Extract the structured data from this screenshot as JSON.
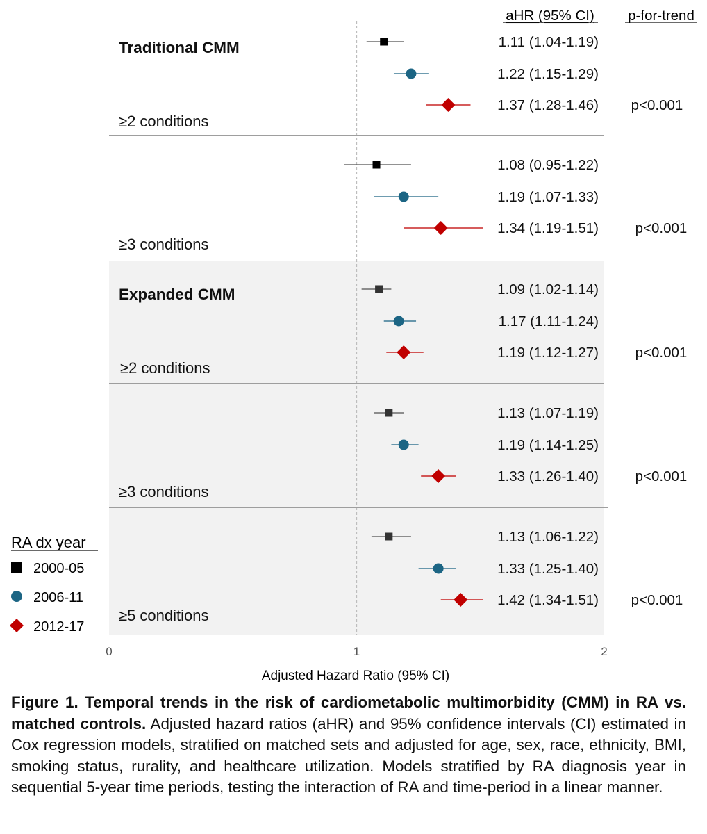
{
  "column_headers": {
    "estimate": "aHR (95% CI)",
    "trend": "p-for-trend"
  },
  "chart_data": {
    "type": "forest",
    "xlabel": "Adjusted Hazard Ratio (95% CI)",
    "xlim": [
      0,
      2
    ],
    "xticks": [
      0,
      1,
      2
    ],
    "reference_line": 1,
    "grid": false,
    "legend_title": "RA dx year",
    "legend_position": "bottom-left",
    "series": [
      {
        "name": "2000-05",
        "marker": "square",
        "color": "#000000"
      },
      {
        "name": "2006-11",
        "marker": "circle",
        "color": "#1c6584"
      },
      {
        "name": "2012-17",
        "marker": "diamond",
        "color": "#c00000"
      }
    ],
    "panels": [
      {
        "section": "Traditional CMM",
        "label": "≥2 conditions",
        "p_trend": "p<0.001",
        "shaded": false,
        "rows": [
          {
            "series": "2000-05",
            "hr": 1.11,
            "lo": 1.04,
            "hi": 1.19,
            "text": "1.11 (1.04-1.19)"
          },
          {
            "series": "2006-11",
            "hr": 1.22,
            "lo": 1.15,
            "hi": 1.29,
            "text": "1.22 (1.15-1.29)"
          },
          {
            "series": "2012-17",
            "hr": 1.37,
            "lo": 1.28,
            "hi": 1.46,
            "text": "1.37 (1.28-1.46)"
          }
        ]
      },
      {
        "section": "",
        "label": "≥3 conditions",
        "p_trend": "p<0.001",
        "shaded": false,
        "rows": [
          {
            "series": "2000-05",
            "hr": 1.08,
            "lo": 0.95,
            "hi": 1.22,
            "text": "1.08 (0.95-1.22)"
          },
          {
            "series": "2006-11",
            "hr": 1.19,
            "lo": 1.07,
            "hi": 1.33,
            "text": "1.19 (1.07-1.33)"
          },
          {
            "series": "2012-17",
            "hr": 1.34,
            "lo": 1.19,
            "hi": 1.51,
            "text": "1.34 (1.19-1.51)"
          }
        ]
      },
      {
        "section": "Expanded CMM",
        "label": "≥2 conditions",
        "p_trend": "p<0.001",
        "shaded": true,
        "rows": [
          {
            "series": "2000-05",
            "hr": 1.09,
            "lo": 1.02,
            "hi": 1.14,
            "text": "1.09 (1.02-1.14)"
          },
          {
            "series": "2006-11",
            "hr": 1.17,
            "lo": 1.11,
            "hi": 1.24,
            "text": "1.17 (1.11-1.24)"
          },
          {
            "series": "2012-17",
            "hr": 1.19,
            "lo": 1.12,
            "hi": 1.27,
            "text": "1.19 (1.12-1.27)"
          }
        ]
      },
      {
        "section": "",
        "label": "≥3 conditions",
        "p_trend": "p<0.001",
        "shaded": true,
        "rows": [
          {
            "series": "2000-05",
            "hr": 1.13,
            "lo": 1.07,
            "hi": 1.19,
            "text": "1.13 (1.07-1.19)"
          },
          {
            "series": "2006-11",
            "hr": 1.19,
            "lo": 1.14,
            "hi": 1.25,
            "text": "1.19 (1.14-1.25)"
          },
          {
            "series": "2012-17",
            "hr": 1.33,
            "lo": 1.26,
            "hi": 1.4,
            "text": "1.33 (1.26-1.40)"
          }
        ]
      },
      {
        "section": "",
        "label": "≥5 conditions",
        "p_trend": "p<0.001",
        "shaded": true,
        "rows": [
          {
            "series": "2000-05",
            "hr": 1.13,
            "lo": 1.06,
            "hi": 1.22,
            "text": "1.13 (1.06-1.22)"
          },
          {
            "series": "2006-11",
            "hr": 1.33,
            "lo": 1.25,
            "hi": 1.4,
            "text": "1.33 (1.25-1.40)"
          },
          {
            "series": "2012-17",
            "hr": 1.42,
            "lo": 1.34,
            "hi": 1.51,
            "text": "1.42 (1.34-1.51)"
          }
        ]
      }
    ]
  },
  "caption": {
    "title": "Figure 1. Temporal trends in the risk of cardiometabolic multimorbidity (CMM) in RA vs. matched controls.",
    "body": "Adjusted hazard ratios (aHR) and 95% confidence intervals (CI) estimated in Cox regression models, stratified on matched sets and adjusted for age, sex, race, ethnicity, BMI, smoking status, rurality, and healthcare utilization. Models stratified by RA diagnosis year in sequential 5-year time periods, testing the interaction of RA and time-period in a linear manner."
  }
}
